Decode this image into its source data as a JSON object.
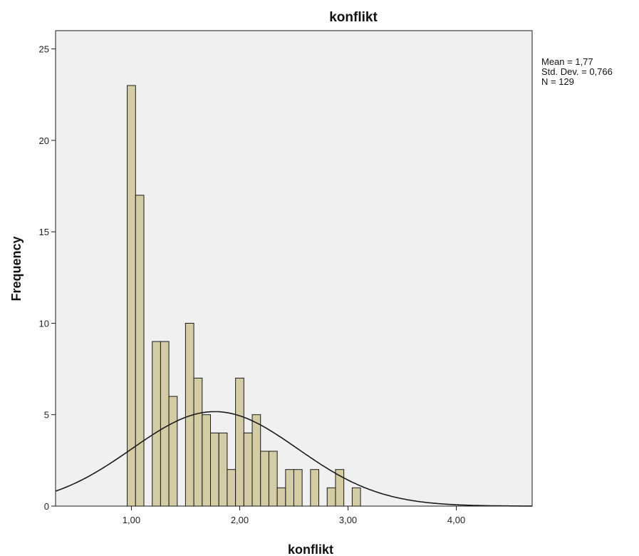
{
  "chart_data": {
    "type": "bar",
    "title": "konflikt",
    "xlabel": "konflikt",
    "ylabel": "Frequency",
    "bin_width": 0.0769,
    "bins": [
      {
        "x": 1.0,
        "y": 23
      },
      {
        "x": 1.077,
        "y": 17
      },
      {
        "x": 1.154,
        "y": 0
      },
      {
        "x": 1.231,
        "y": 9
      },
      {
        "x": 1.308,
        "y": 9
      },
      {
        "x": 1.385,
        "y": 6
      },
      {
        "x": 1.462,
        "y": 0
      },
      {
        "x": 1.538,
        "y": 10
      },
      {
        "x": 1.615,
        "y": 7
      },
      {
        "x": 1.692,
        "y": 5
      },
      {
        "x": 1.769,
        "y": 4
      },
      {
        "x": 1.846,
        "y": 4
      },
      {
        "x": 1.923,
        "y": 2
      },
      {
        "x": 2.0,
        "y": 7
      },
      {
        "x": 2.077,
        "y": 4
      },
      {
        "x": 2.154,
        "y": 5
      },
      {
        "x": 2.231,
        "y": 3
      },
      {
        "x": 2.308,
        "y": 3
      },
      {
        "x": 2.385,
        "y": 1
      },
      {
        "x": 2.462,
        "y": 2
      },
      {
        "x": 2.538,
        "y": 2
      },
      {
        "x": 2.615,
        "y": 0
      },
      {
        "x": 2.692,
        "y": 2
      },
      {
        "x": 2.769,
        "y": 0
      },
      {
        "x": 2.846,
        "y": 1
      },
      {
        "x": 2.923,
        "y": 2
      },
      {
        "x": 3.0,
        "y": 0
      },
      {
        "x": 3.077,
        "y": 1
      }
    ],
    "xlim": [
      0.3,
      4.7
    ],
    "ylim": [
      0,
      26
    ],
    "xticks": [
      1,
      2,
      3,
      4
    ],
    "xtick_labels": [
      "1,00",
      "2,00",
      "3,00",
      "4,00"
    ],
    "yticks": [
      0,
      5,
      10,
      15,
      20,
      25
    ],
    "ytick_labels": [
      "0",
      "5",
      "10",
      "15",
      "20",
      "25"
    ],
    "normal_curve": {
      "mean": 1.77,
      "sd": 0.766,
      "n": 129
    },
    "stats_text": [
      "Mean = 1,77",
      "Std. Dev. = 0,766",
      "N = 129"
    ],
    "colors": {
      "bar_fill": "#d4cca4",
      "bar_stroke": "#1a1a1a",
      "plot_bg": "#f0f0f0",
      "curve": "#1a1a1a"
    },
    "grid": false
  }
}
